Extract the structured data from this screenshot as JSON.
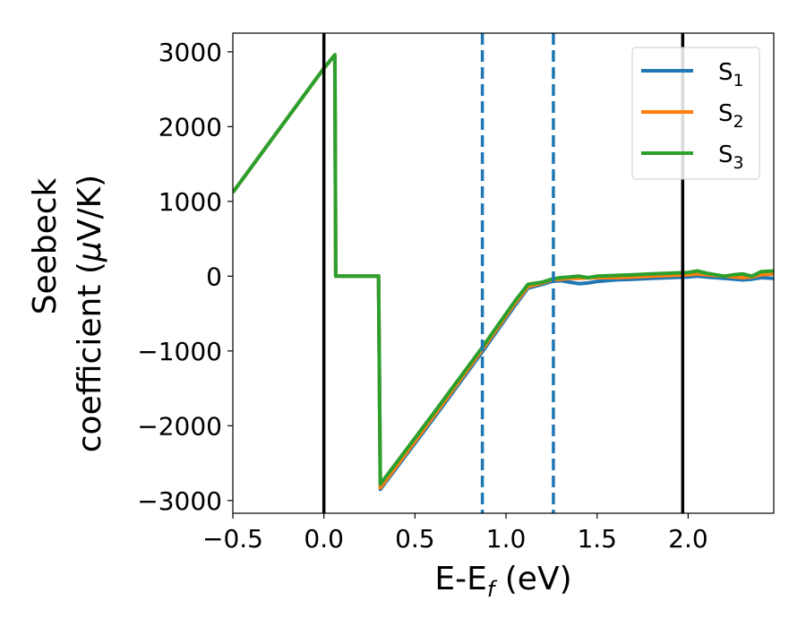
{
  "chart_data": {
    "type": "line",
    "xlabel": {
      "main": "E-E",
      "sub": "f",
      "suffix": " (eV)"
    },
    "ylabel": {
      "line1": "Seebeck",
      "line2_pre": "coefficient  (",
      "mu": "μ",
      "line2_post": "V/K)"
    },
    "xlim": [
      -0.5,
      2.47
    ],
    "ylim": [
      -3170,
      3250
    ],
    "xticks": [
      {
        "value": -0.5,
        "label": "−0.5"
      },
      {
        "value": 0.0,
        "label": "0.0"
      },
      {
        "value": 0.5,
        "label": "0.5"
      },
      {
        "value": 1.0,
        "label": "1.0"
      },
      {
        "value": 1.5,
        "label": "1.5"
      },
      {
        "value": 2.0,
        "label": "2.0"
      }
    ],
    "yticks": [
      {
        "value": 3000,
        "label": "3000"
      },
      {
        "value": 2000,
        "label": "2000"
      },
      {
        "value": 1000,
        "label": "1000"
      },
      {
        "value": 0,
        "label": "0"
      },
      {
        "value": -1000,
        "label": "−1000"
      },
      {
        "value": -2000,
        "label": "−2000"
      },
      {
        "value": -3000,
        "label": "−3000"
      }
    ],
    "vlines": [
      {
        "x": 0.0,
        "style": "solid",
        "color": "#000000"
      },
      {
        "x": 1.97,
        "style": "solid",
        "color": "#000000"
      },
      {
        "x": 0.87,
        "style": "dashed",
        "color": "#1f77b4"
      },
      {
        "x": 1.26,
        "style": "dashed",
        "color": "#1f77b4"
      }
    ],
    "legend_position": "top-right",
    "grid": false,
    "series": [
      {
        "name": "S",
        "sub": "1",
        "color": "#1f77b4",
        "x": [
          -0.5,
          0.0,
          0.06,
          0.065,
          0.3,
          0.31,
          0.6,
          0.87,
          1.05,
          1.12,
          1.2,
          1.25,
          1.3,
          1.35,
          1.4,
          1.45,
          1.5,
          1.6,
          1.7,
          1.8,
          1.9,
          2.0,
          2.05,
          2.1,
          2.15,
          2.2,
          2.3,
          2.35,
          2.4,
          2.47
        ],
        "y": [
          1120,
          2780,
          2960,
          0,
          0,
          -2850,
          -1910,
          -1010,
          -390,
          -160,
          -110,
          -70,
          -60,
          -80,
          -100,
          -90,
          -70,
          -50,
          -40,
          -30,
          -20,
          -10,
          0,
          -10,
          -20,
          -30,
          -50,
          -40,
          -20,
          -30
        ]
      },
      {
        "name": "S",
        "sub": "2",
        "color": "#ff7f0e",
        "x": [
          -0.5,
          0.0,
          0.06,
          0.065,
          0.3,
          0.31,
          0.6,
          0.87,
          1.05,
          1.12,
          1.2,
          1.25,
          1.3,
          1.35,
          1.4,
          1.5,
          1.6,
          1.7,
          1.8,
          1.9,
          2.0,
          2.05,
          2.1,
          2.2,
          2.3,
          2.35,
          2.4,
          2.47
        ],
        "y": [
          1120,
          2780,
          2960,
          0,
          0,
          -2830,
          -1880,
          -980,
          -360,
          -140,
          -90,
          -50,
          -40,
          -30,
          -30,
          -20,
          -20,
          -10,
          0,
          10,
          20,
          30,
          20,
          0,
          -20,
          -10,
          20,
          30
        ]
      },
      {
        "name": "S",
        "sub": "3",
        "color": "#2ca02c",
        "x": [
          -0.5,
          0.0,
          0.06,
          0.065,
          0.3,
          0.31,
          0.6,
          0.87,
          1.05,
          1.12,
          1.2,
          1.25,
          1.3,
          1.35,
          1.4,
          1.45,
          1.5,
          1.6,
          1.7,
          1.8,
          1.9,
          2.0,
          2.05,
          2.1,
          2.15,
          2.2,
          2.25,
          2.3,
          2.35,
          2.4,
          2.47
        ],
        "y": [
          1120,
          2780,
          2960,
          0,
          0,
          -2780,
          -1840,
          -950,
          -330,
          -110,
          -80,
          -40,
          -20,
          -10,
          0,
          -20,
          0,
          10,
          20,
          30,
          40,
          50,
          70,
          40,
          20,
          0,
          20,
          30,
          0,
          60,
          70
        ]
      }
    ]
  }
}
